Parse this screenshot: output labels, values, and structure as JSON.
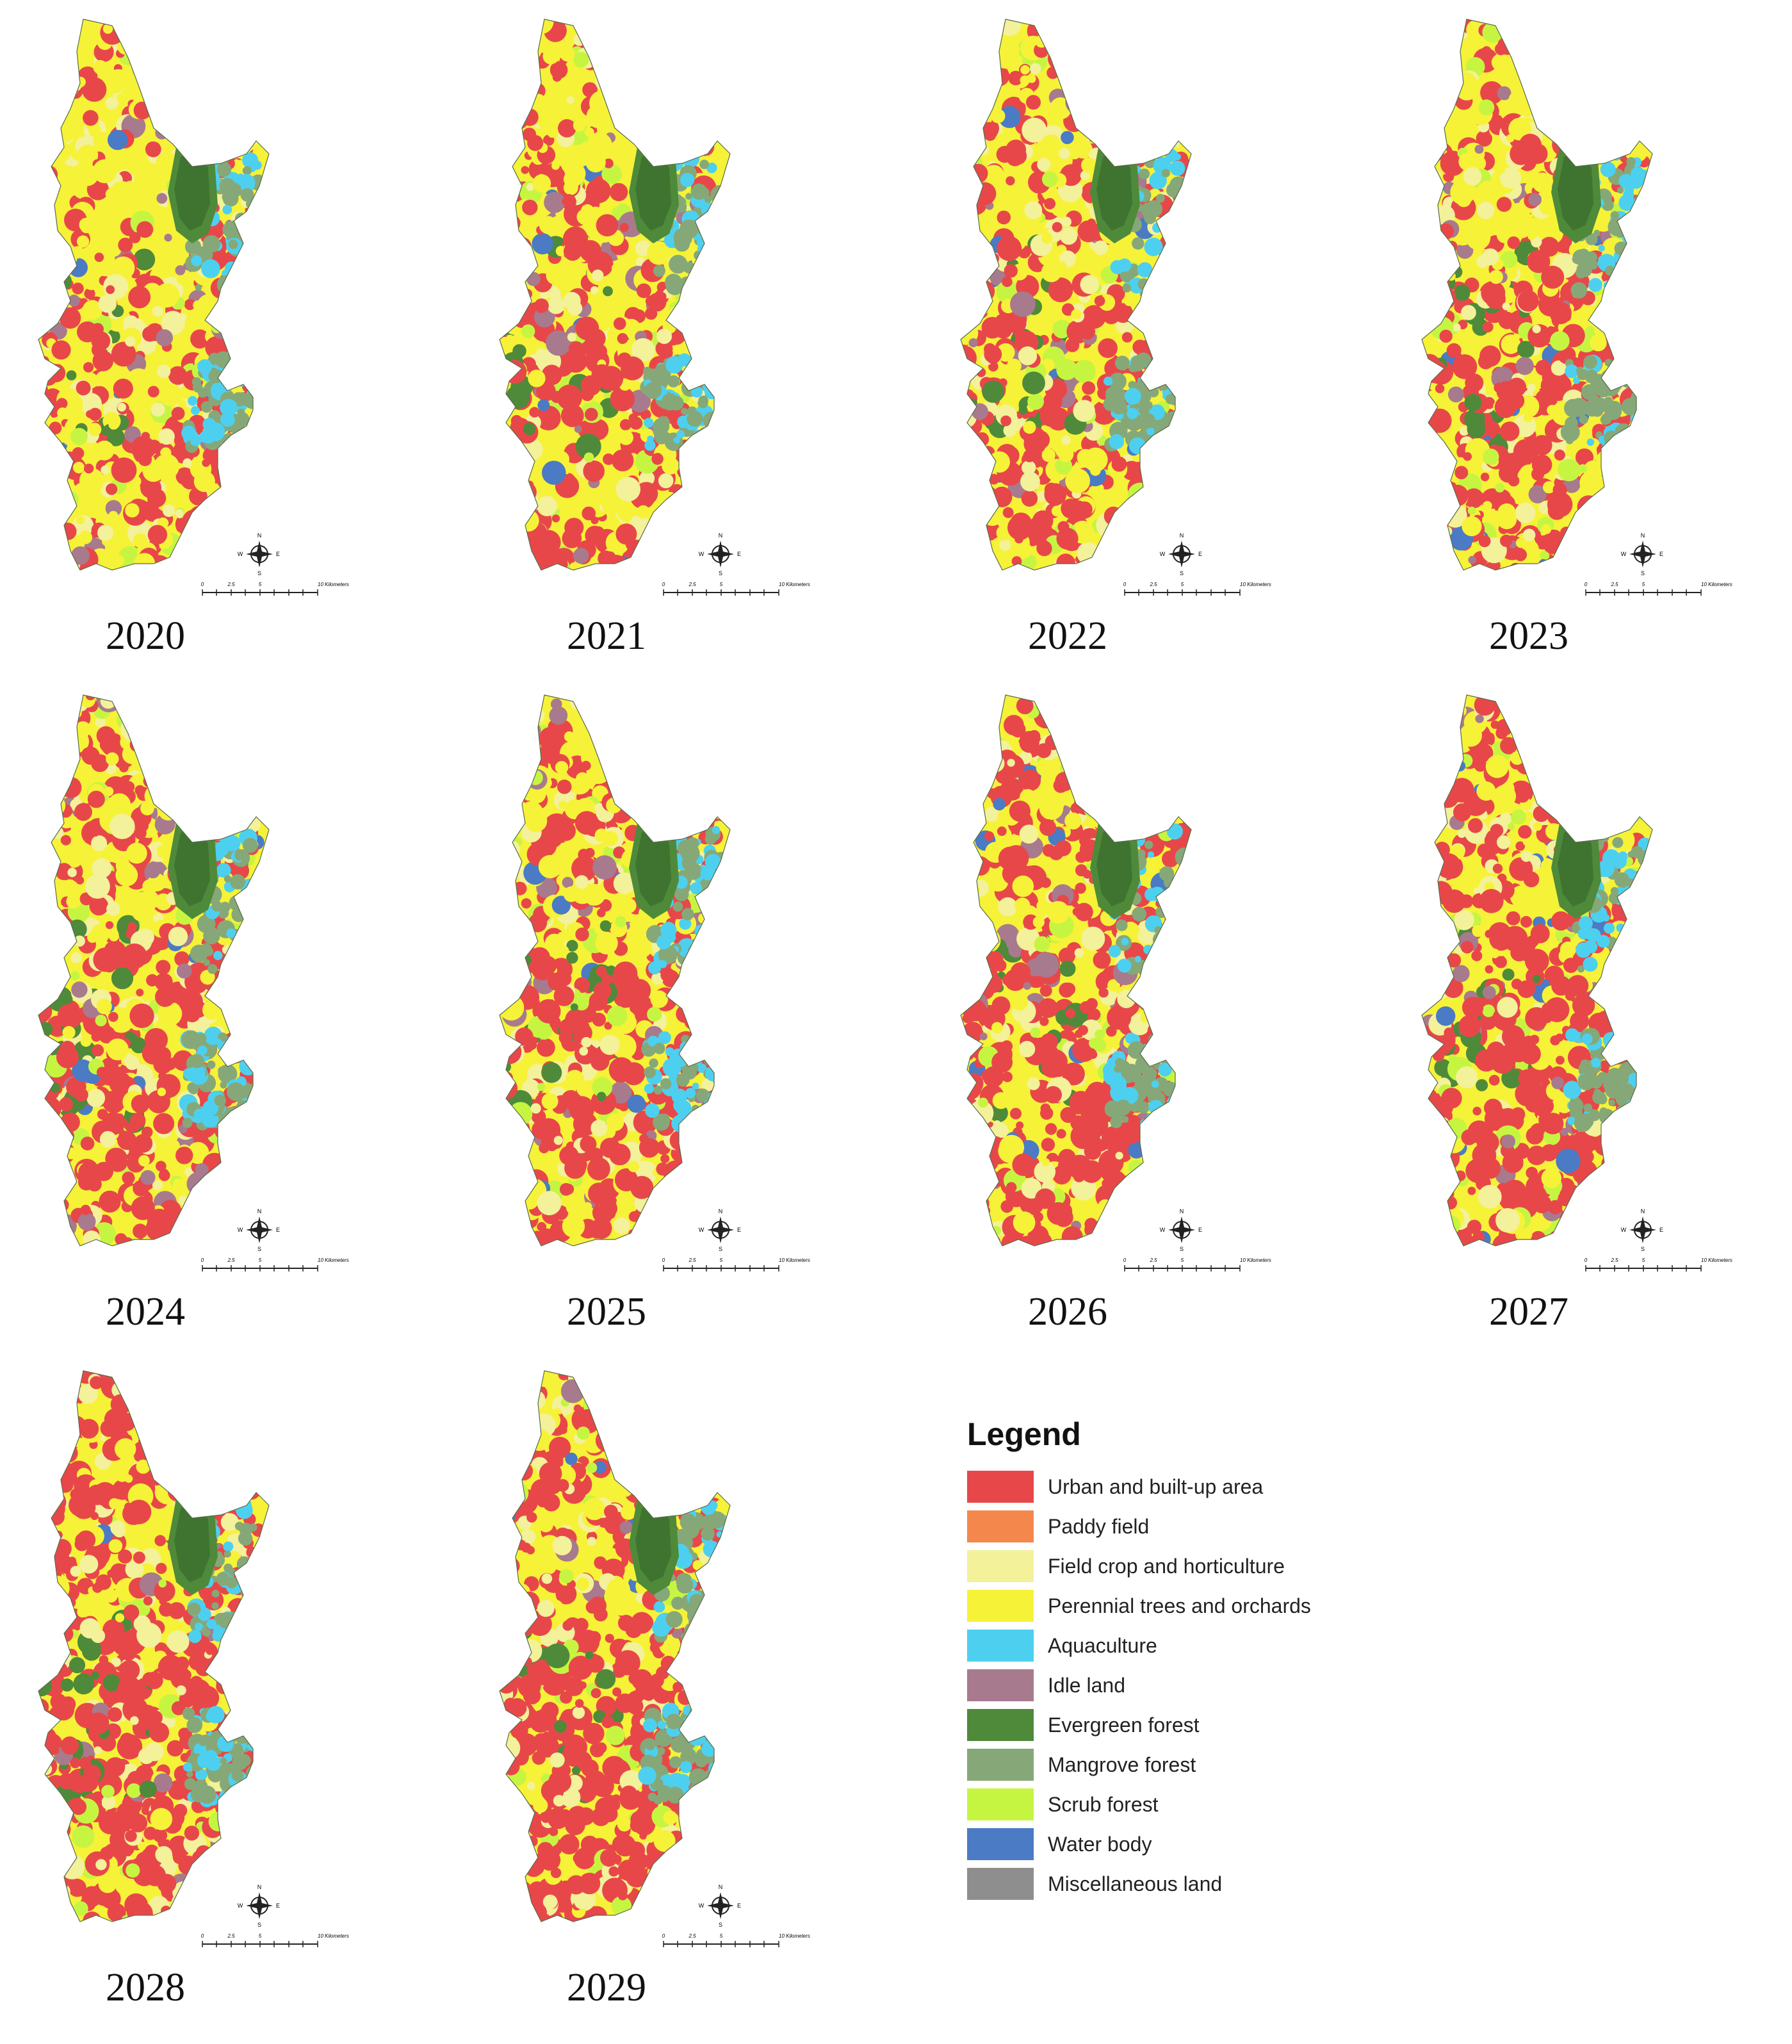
{
  "maps": [
    {
      "year": "2020"
    },
    {
      "year": "2021"
    },
    {
      "year": "2022"
    },
    {
      "year": "2023"
    },
    {
      "year": "2024"
    },
    {
      "year": "2025"
    },
    {
      "year": "2026"
    },
    {
      "year": "2027"
    },
    {
      "year": "2028"
    },
    {
      "year": "2029"
    }
  ],
  "compass": {
    "n": "N",
    "s": "S",
    "e": "E",
    "w": "W"
  },
  "scale": {
    "ticks": [
      "0",
      "2.5",
      "5",
      "10 Kilometers"
    ]
  },
  "legend": {
    "title": "Legend",
    "items": [
      {
        "label": "Urban and built-up area",
        "color": "#e8474a"
      },
      {
        "label": "Paddy field",
        "color": "#f4884c"
      },
      {
        "label": "Field crop and horticulture",
        "color": "#f3f19a"
      },
      {
        "label": "Perennial trees and orchards",
        "color": "#f6f238"
      },
      {
        "label": "Aquaculture",
        "color": "#4dd0ef"
      },
      {
        "label": "Idle land",
        "color": "#a87a8e"
      },
      {
        "label": "Evergreen forest",
        "color": "#4e8a3a"
      },
      {
        "label": "Mangrove forest",
        "color": "#86a878"
      },
      {
        "label": "Scrub forest",
        "color": "#c6f541"
      },
      {
        "label": "Water body",
        "color": "#4a7bc4"
      },
      {
        "label": "Miscellaneous land",
        "color": "#8e8e8e"
      }
    ]
  }
}
